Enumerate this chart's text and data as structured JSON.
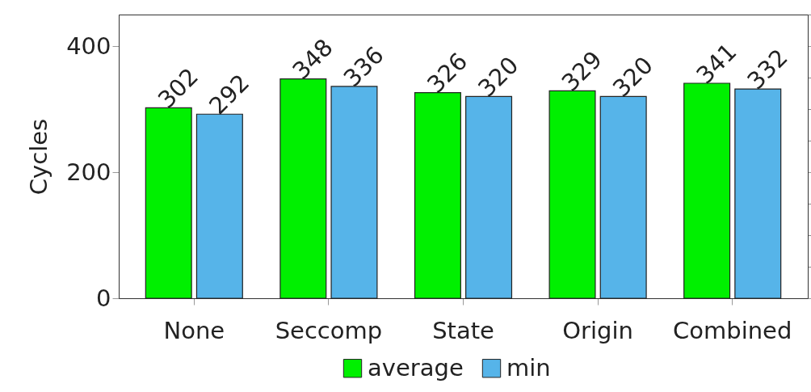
{
  "chart_data": {
    "type": "bar",
    "ylabel": "Cycles",
    "categories": [
      "None",
      "Seccomp",
      "State",
      "Origin",
      "Combined"
    ],
    "series": [
      {
        "name": "average",
        "color": "#00f000",
        "values": [
          302,
          348,
          326,
          329,
          341
        ]
      },
      {
        "name": "min",
        "color": "#56b4e9",
        "values": [
          292,
          336,
          320,
          320,
          332
        ]
      }
    ],
    "ylim": [
      0,
      450
    ],
    "yticks": [
      0,
      200,
      400
    ],
    "grid": false,
    "legend": "bottom",
    "data_labels": true
  }
}
